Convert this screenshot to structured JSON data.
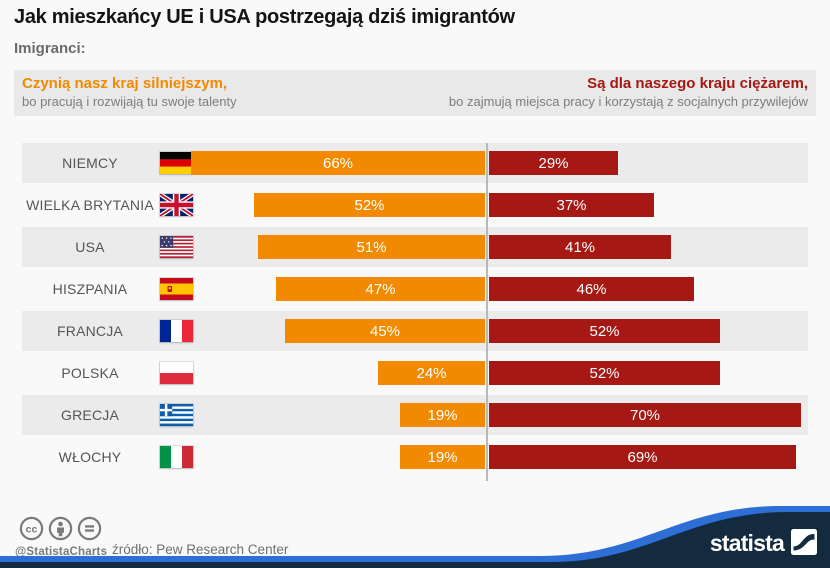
{
  "title": "Jak mieszkańcy UE i USA postrzegają dziś imigrantów",
  "subtitle": "Imigranci:",
  "legend": {
    "left": {
      "headline": "Czynią nasz kraj silniejszym,",
      "subline": "bo pracują i rozwijają tu swoje talenty"
    },
    "right": {
      "headline": "Są dla naszego kraju ciężarem,",
      "subline": "bo zajmują miejsca pracy i korzystają z socjalnych przywilejów"
    }
  },
  "chart_data": {
    "type": "bar",
    "variant": "diverging-horizontal",
    "categories": [
      {
        "label": "NIEMCY",
        "flag": "flag-germany"
      },
      {
        "label": "WIELKA BRYTANIA",
        "flag": "flag-uk"
      },
      {
        "label": "USA",
        "flag": "flag-usa"
      },
      {
        "label": "HISZPANIA",
        "flag": "flag-spain"
      },
      {
        "label": "FRANCJA",
        "flag": "flag-france"
      },
      {
        "label": "POLSKA",
        "flag": "flag-poland"
      },
      {
        "label": "GRECJA",
        "flag": "flag-greece"
      },
      {
        "label": "WŁOCHY",
        "flag": "flag-italy"
      }
    ],
    "series": [
      {
        "name": "Czynią nasz kraj silniejszym",
        "color": "#F18A00",
        "values": [
          66,
          52,
          51,
          47,
          45,
          24,
          19,
          19
        ]
      },
      {
        "name": "Są dla naszego kraju ciężarem",
        "color": "#A51813",
        "values": [
          29,
          37,
          41,
          46,
          52,
          52,
          70,
          69
        ]
      }
    ],
    "value_suffix": "%",
    "value_labels": "inside",
    "center_divider": true,
    "row_striping": true
  },
  "colors": {
    "accent_orange": "#F18A00",
    "accent_red": "#A51813",
    "band_gray": "#EBEBEB",
    "strip_gray": "#E9E9E9",
    "background": "#F9F9F9",
    "brand_navy": "#142A3E",
    "brand_blue": "#2E6FD6"
  },
  "footer": {
    "license_icons": [
      "cc-icon",
      "attribution-icon",
      "no-derivatives-icon"
    ],
    "credit": "@StatistaCharts",
    "source": "źródło: Pew Research Center",
    "brand": "statista"
  }
}
